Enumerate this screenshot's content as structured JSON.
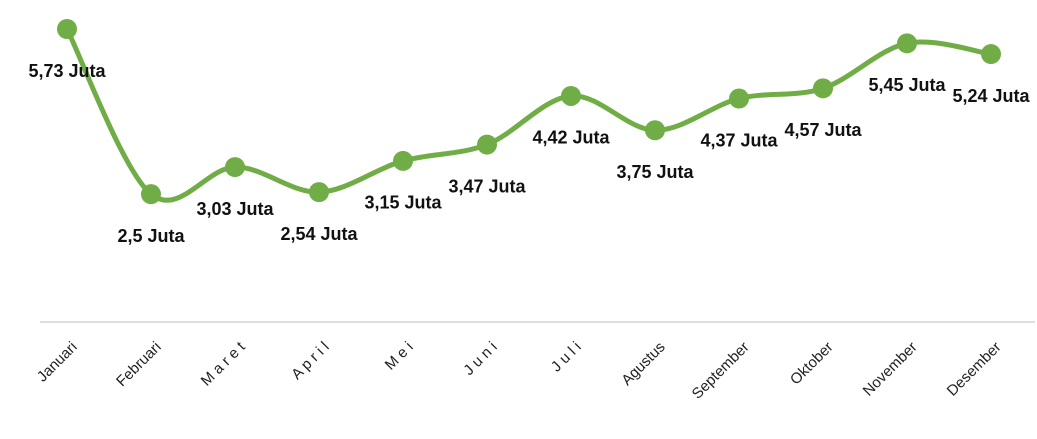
{
  "chart_data": {
    "type": "line",
    "categories": [
      "Januari",
      "Februari",
      "M a r e t",
      "A p r i l",
      "M e i",
      "J u n i",
      "J u l i",
      "Agustus",
      "September",
      "Oktober",
      "November",
      "Desember"
    ],
    "series": [
      {
        "color": "#70ad47",
        "values": [
          5.73,
          2.5,
          3.03,
          2.54,
          3.15,
          3.47,
          4.42,
          3.75,
          4.37,
          4.57,
          5.45,
          5.24
        ],
        "value_labels": [
          "5,73 Juta",
          "2,5 Juta",
          "3,03 Juta",
          "2,54 Juta",
          "3,15 Juta",
          "3,47 Juta",
          "4,42 Juta",
          "3,75 Juta",
          "4,37 Juta",
          "4,57 Juta",
          "5,45 Juta",
          "5,24 Juta"
        ]
      }
    ]
  }
}
